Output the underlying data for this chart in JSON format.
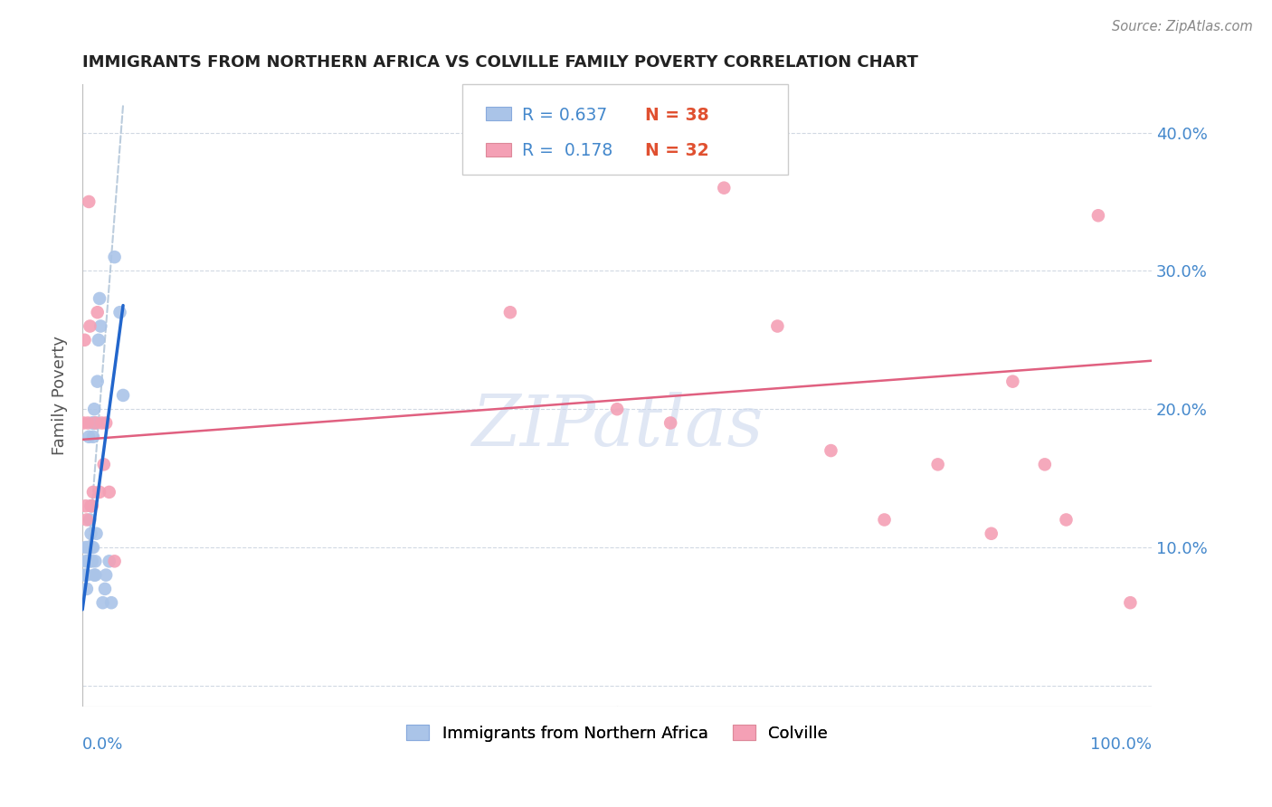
{
  "title": "IMMIGRANTS FROM NORTHERN AFRICA VS COLVILLE FAMILY POVERTY CORRELATION CHART",
  "source": "Source: ZipAtlas.com",
  "ylabel": "Family Poverty",
  "y_tick_labels": [
    "",
    "10.0%",
    "20.0%",
    "30.0%",
    "40.0%"
  ],
  "y_tick_values": [
    0.0,
    0.1,
    0.2,
    0.3,
    0.4
  ],
  "xlim": [
    0.0,
    1.0
  ],
  "ylim": [
    -0.015,
    0.435
  ],
  "legend_r1": "R = 0.637",
  "legend_n1": "N = 38",
  "legend_r2": "R =  0.178",
  "legend_n2": "N = 32",
  "series1_color": "#aac4e8",
  "series2_color": "#f4a0b5",
  "line1_color": "#2266cc",
  "line2_color": "#e06080",
  "trend1_color": "#bbccdd",
  "blue_scatter_x": [
    0.002,
    0.003,
    0.003,
    0.004,
    0.004,
    0.005,
    0.005,
    0.006,
    0.006,
    0.007,
    0.007,
    0.007,
    0.008,
    0.008,
    0.009,
    0.009,
    0.009,
    0.01,
    0.01,
    0.01,
    0.011,
    0.011,
    0.012,
    0.012,
    0.013,
    0.013,
    0.014,
    0.015,
    0.016,
    0.017,
    0.019,
    0.021,
    0.022,
    0.025,
    0.027,
    0.03,
    0.035,
    0.038
  ],
  "blue_scatter_y": [
    0.08,
    0.09,
    0.1,
    0.08,
    0.07,
    0.09,
    0.1,
    0.1,
    0.18,
    0.09,
    0.1,
    0.12,
    0.11,
    0.13,
    0.09,
    0.1,
    0.19,
    0.1,
    0.18,
    0.19,
    0.2,
    0.08,
    0.08,
    0.09,
    0.19,
    0.11,
    0.22,
    0.25,
    0.28,
    0.26,
    0.06,
    0.07,
    0.08,
    0.09,
    0.06,
    0.31,
    0.27,
    0.21
  ],
  "pink_scatter_x": [
    0.001,
    0.002,
    0.003,
    0.004,
    0.005,
    0.006,
    0.007,
    0.008,
    0.009,
    0.01,
    0.012,
    0.014,
    0.016,
    0.018,
    0.02,
    0.022,
    0.025,
    0.03,
    0.4,
    0.5,
    0.55,
    0.6,
    0.65,
    0.7,
    0.75,
    0.8,
    0.85,
    0.87,
    0.9,
    0.92,
    0.95,
    0.98
  ],
  "pink_scatter_y": [
    0.19,
    0.25,
    0.13,
    0.12,
    0.19,
    0.35,
    0.26,
    0.13,
    0.13,
    0.14,
    0.19,
    0.27,
    0.14,
    0.19,
    0.16,
    0.19,
    0.14,
    0.09,
    0.27,
    0.2,
    0.19,
    0.36,
    0.26,
    0.17,
    0.12,
    0.16,
    0.11,
    0.22,
    0.16,
    0.12,
    0.34,
    0.06
  ],
  "line1_x": [
    0.0,
    0.038
  ],
  "line1_y": [
    0.055,
    0.275
  ],
  "line2_x": [
    0.0,
    1.0
  ],
  "line2_y": [
    0.178,
    0.235
  ],
  "trend1_x": [
    0.005,
    0.038
  ],
  "trend1_y": [
    0.09,
    0.42
  ],
  "background_color": "#ffffff",
  "grid_color": "#ccd5e0",
  "title_color": "#222222",
  "axis_tick_color": "#4488cc",
  "ylabel_color": "#555555"
}
